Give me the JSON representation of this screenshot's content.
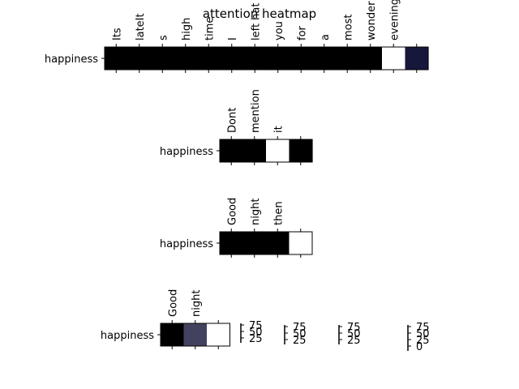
{
  "chart_data": [
    {
      "type": "heatmap",
      "title": "attention heatmap",
      "rows": [
        "happiness"
      ],
      "columns": [
        "Its",
        "lateIt",
        "s",
        "high",
        "time",
        "I",
        "left hat",
        "you",
        "for",
        "a",
        "most",
        "wonder",
        "evening",
        ""
      ],
      "values": [
        [
          0,
          0,
          0,
          0,
          0,
          0,
          0,
          0,
          0,
          0,
          0,
          0,
          1,
          0.1
        ]
      ]
    },
    {
      "type": "heatmap",
      "rows": [
        "happiness"
      ],
      "columns": [
        "Dont",
        "mention",
        "it",
        ""
      ],
      "values": [
        [
          0,
          0,
          1,
          0
        ]
      ]
    },
    {
      "type": "heatmap",
      "rows": [
        "happiness"
      ],
      "columns": [
        "Good",
        "night",
        "then",
        ""
      ],
      "values": [
        [
          0,
          0,
          0,
          1
        ]
      ]
    },
    {
      "type": "heatmap",
      "rows": [
        "happiness"
      ],
      "columns": [
        "Good",
        "night",
        ""
      ],
      "values": [
        [
          0,
          0.28,
          1
        ]
      ]
    }
  ],
  "colorbars": [
    {
      "ticks": [
        "75",
        "50",
        "25"
      ]
    },
    {
      "ticks": [
        "75",
        "50",
        "25"
      ]
    },
    {
      "ticks": [
        "75",
        "50",
        "25"
      ]
    },
    {
      "ticks": [
        "75",
        "50",
        "25",
        "0"
      ]
    }
  ]
}
